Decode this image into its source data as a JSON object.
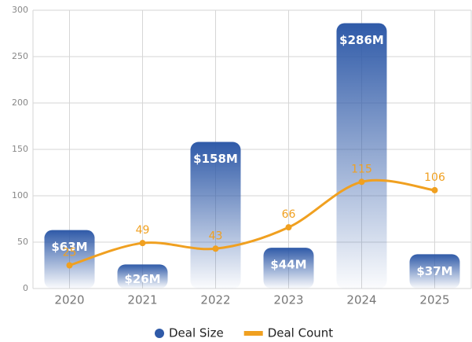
{
  "chart_data": {
    "type": "bar_line",
    "categories": [
      "2020",
      "2021",
      "2022",
      "2023",
      "2024",
      "2025"
    ],
    "series": [
      {
        "name": "Deal Size",
        "type": "bar",
        "color": "#2f5aa8",
        "values": [
          63,
          26,
          158,
          44,
          286,
          37
        ],
        "value_labels": [
          "$63M",
          "$26M",
          "$158M",
          "$44M",
          "$286M",
          "$37M"
        ]
      },
      {
        "name": "Deal Count",
        "type": "line",
        "color": "#f0a020",
        "values": [
          25,
          49,
          43,
          66,
          115,
          106
        ]
      }
    ],
    "ylim": [
      0,
      300
    ],
    "yticks": [
      0,
      50,
      100,
      150,
      200,
      250,
      300
    ],
    "grid": true,
    "legend": "bottom"
  }
}
